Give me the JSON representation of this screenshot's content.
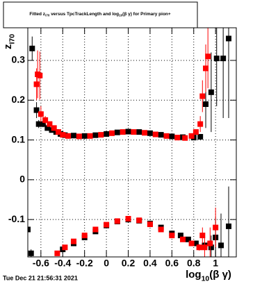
{
  "chart_data": {
    "type": "scatter",
    "title": [
      "Fitted  z",
      "I70",
      "  versus TpcTrackLength and log",
      "10",
      "(β γ) for Primary pion+"
    ],
    "x_label": [
      "log",
      "10",
      "(β γ)"
    ],
    "y_label": [
      "z",
      "I70"
    ],
    "footer": "Tue Dec 21 21:56:31 2021",
    "xlim": [
      -0.72,
      1.19
    ],
    "ylim": [
      -0.194,
      0.382
    ],
    "xticks": [
      -0.6,
      -0.4,
      -0.2,
      0,
      0.2,
      0.4,
      0.6,
      0.8,
      1
    ],
    "yticks": [
      -0.1,
      0,
      0.1,
      0.2,
      0.3
    ],
    "grid": true,
    "series": [
      {
        "color": "#000000",
        "x": [
          -0.68,
          -0.64,
          -0.62,
          -0.58,
          -0.54,
          -0.5,
          -0.46,
          -0.42,
          -0.38,
          -0.3,
          -0.2,
          -0.1,
          0,
          0.1,
          0.2,
          0.3,
          0.4,
          0.5,
          0.6,
          0.7,
          0.8,
          0.86,
          0.91,
          0.96,
          1.01,
          1.07,
          1.12
        ],
        "values": [
          0.33,
          0.175,
          0.14,
          0.14,
          0.13,
          0.125,
          0.12,
          0.115,
          0.112,
          0.111,
          0.11,
          0.112,
          0.115,
          0.119,
          0.121,
          0.12,
          0.117,
          0.113,
          0.109,
          0.107,
          0.106,
          0.108,
          0.19,
          0.22,
          0.305,
          0.305,
          0.355
        ],
        "errors": [
          0.03,
          0.02,
          0.01,
          0.008,
          0.005,
          0.004,
          0.003,
          0.003,
          0.003,
          0.002,
          0.002,
          0.002,
          0.002,
          0.002,
          0.002,
          0.002,
          0.002,
          0.002,
          0.002,
          0.003,
          0.004,
          0.006,
          0.06,
          0.1,
          0.12,
          0.15,
          0.2
        ]
      },
      {
        "color": "#ff0000",
        "x": [
          -0.64,
          -0.63,
          -0.61,
          -0.6,
          -0.56,
          -0.52,
          -0.48,
          -0.44,
          -0.4,
          -0.35,
          -0.25,
          -0.15,
          -0.05,
          0.05,
          0.15,
          0.25,
          0.35,
          0.45,
          0.55,
          0.65,
          0.72,
          0.78,
          0.82,
          0.86,
          0.88,
          0.91,
          0.93
        ],
        "values": [
          0.24,
          0.265,
          0.262,
          0.165,
          0.15,
          0.14,
          0.13,
          0.12,
          0.113,
          0.11,
          0.109,
          0.11,
          0.113,
          0.117,
          0.12,
          0.12,
          0.118,
          0.114,
          0.11,
          0.106,
          0.105,
          0.11,
          0.12,
          0.14,
          0.21,
          0.28,
          0.31
        ],
        "errors": [
          0.04,
          0.06,
          0.06,
          0.02,
          0.01,
          0.006,
          0.004,
          0.003,
          0.003,
          0.002,
          0.002,
          0.002,
          0.002,
          0.002,
          0.002,
          0.002,
          0.002,
          0.002,
          0.002,
          0.002,
          0.003,
          0.004,
          0.006,
          0.02,
          0.04,
          0.06,
          0.08
        ]
      },
      {
        "color": "#000000",
        "x": [
          -0.72,
          -0.69,
          -0.4,
          -0.3,
          -0.2,
          -0.1,
          0,
          0.1,
          0.2,
          0.3,
          0.4,
          0.5,
          0.6,
          0.68,
          0.75,
          0.82,
          0.9,
          0.96,
          1.0,
          1.05,
          1.12
        ],
        "values": [
          -0.125,
          -0.185,
          -0.175,
          -0.16,
          -0.145,
          -0.13,
          -0.115,
          -0.105,
          -0.1,
          -0.103,
          -0.11,
          -0.12,
          -0.135,
          -0.14,
          -0.15,
          -0.16,
          -0.165,
          -0.17,
          -0.145,
          -0.165,
          -0.117
        ],
        "errors": [
          0.01,
          0.01,
          0.005,
          0.003,
          0.002,
          0.002,
          0.002,
          0.002,
          0.002,
          0.002,
          0.002,
          0.002,
          0.003,
          0.004,
          0.005,
          0.006,
          0.01,
          0.03,
          0.05,
          0.08,
          0.1
        ]
      },
      {
        "color": "#ff0000",
        "x": [
          -0.45,
          -0.38,
          -0.3,
          -0.2,
          -0.1,
          0,
          0.1,
          0.2,
          0.3,
          0.4,
          0.5,
          0.6,
          0.7,
          0.78,
          0.85,
          0.88,
          0.9,
          0.95,
          1.0
        ],
        "values": [
          -0.185,
          -0.17,
          -0.155,
          -0.14,
          -0.125,
          -0.113,
          -0.104,
          -0.098,
          -0.102,
          -0.112,
          -0.125,
          -0.14,
          -0.15,
          -0.16,
          -0.17,
          -0.14,
          -0.17,
          -0.16,
          -0.12
        ],
        "errors": [
          0.006,
          0.004,
          0.003,
          0.002,
          0.002,
          0.002,
          0.002,
          0.002,
          0.002,
          0.002,
          0.002,
          0.003,
          0.004,
          0.005,
          0.008,
          0.02,
          0.03,
          0.04,
          0.05
        ]
      }
    ]
  }
}
